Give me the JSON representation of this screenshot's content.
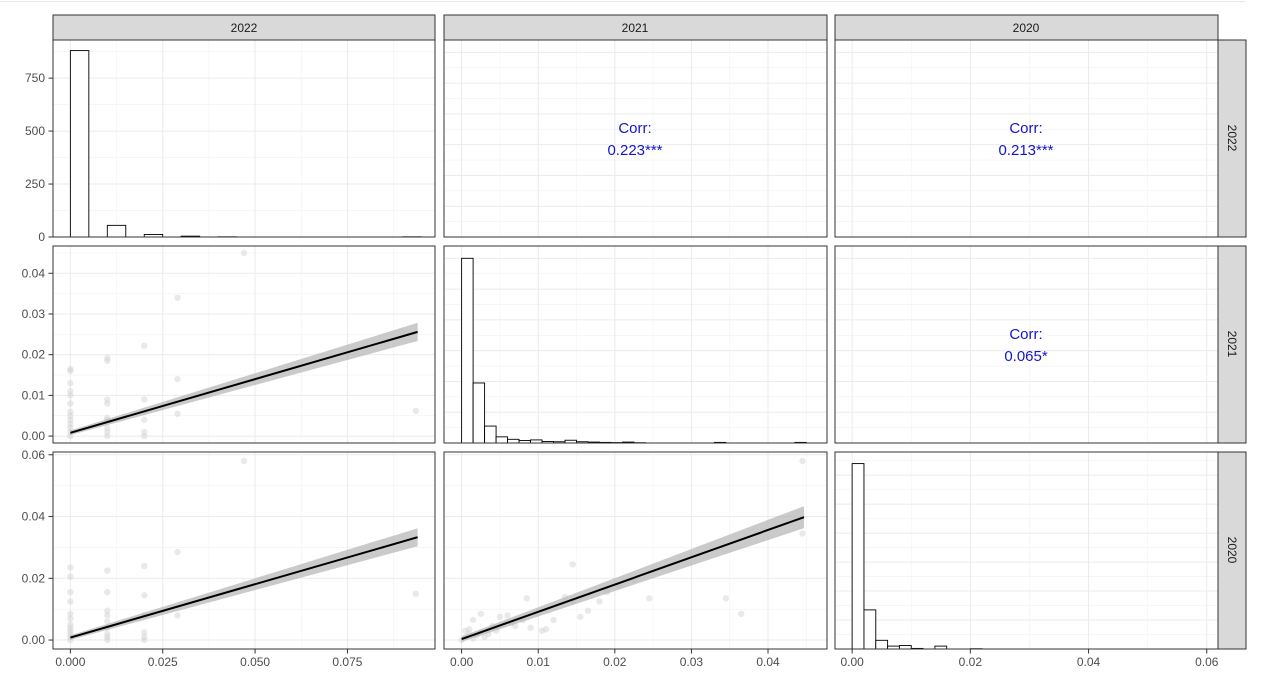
{
  "chart_data": {
    "type": "scatterplot-matrix",
    "variables": [
      "2022",
      "2021",
      "2020"
    ],
    "grid": true,
    "histograms": [
      {
        "variable": "2022",
        "bin_width": 0.005,
        "bins": [
          {
            "x0": 0.0,
            "count": 880
          },
          {
            "x0": 0.01,
            "count": 55
          },
          {
            "x0": 0.02,
            "count": 12
          },
          {
            "x0": 0.03,
            "count": 4
          },
          {
            "x0": 0.04,
            "count": 1
          },
          {
            "x0": 0.09,
            "count": 1
          }
        ],
        "x_ticks": [
          "0.000",
          "0.025",
          "0.050",
          "0.075"
        ],
        "y_ticks": [
          "0",
          "250",
          "500",
          "750"
        ],
        "ylim": [
          0,
          930
        ]
      },
      {
        "variable": "2021",
        "bin_width": 0.0015,
        "bins": [
          {
            "x0": 0.0,
            "count": 600
          },
          {
            "x0": 0.0015,
            "count": 195
          },
          {
            "x0": 0.003,
            "count": 55
          },
          {
            "x0": 0.0045,
            "count": 20
          },
          {
            "x0": 0.006,
            "count": 12
          },
          {
            "x0": 0.0075,
            "count": 8
          },
          {
            "x0": 0.009,
            "count": 10
          },
          {
            "x0": 0.0105,
            "count": 5
          },
          {
            "x0": 0.012,
            "count": 4
          },
          {
            "x0": 0.0135,
            "count": 9
          },
          {
            "x0": 0.015,
            "count": 4
          },
          {
            "x0": 0.0165,
            "count": 3
          },
          {
            "x0": 0.018,
            "count": 2
          },
          {
            "x0": 0.0195,
            "count": 1
          },
          {
            "x0": 0.0195,
            "count": 1
          },
          {
            "x0": 0.021,
            "count": 3
          },
          {
            "x0": 0.0225,
            "count": 1
          },
          {
            "x0": 0.033,
            "count": 2
          },
          {
            "x0": 0.0435,
            "count": 2
          }
        ],
        "x_ticks": [
          "0.00",
          "0.01",
          "0.02",
          "0.03",
          "0.04"
        ],
        "ylim": [
          0,
          640
        ]
      },
      {
        "variable": "2020",
        "bin_width": 0.002,
        "bins": [
          {
            "x0": 0.0,
            "count": 640
          },
          {
            "x0": 0.002,
            "count": 135
          },
          {
            "x0": 0.004,
            "count": 30
          },
          {
            "x0": 0.006,
            "count": 10
          },
          {
            "x0": 0.008,
            "count": 12
          },
          {
            "x0": 0.01,
            "count": 2
          },
          {
            "x0": 0.014,
            "count": 10
          },
          {
            "x0": 0.02,
            "count": 1
          }
        ],
        "x_ticks": [
          "0.00",
          "0.02",
          "0.04",
          "0.06"
        ],
        "ylim": [
          0,
          680
        ]
      }
    ],
    "correlations": [
      {
        "row": "2022",
        "col": "2021",
        "label": "Corr:",
        "value": "0.223***"
      },
      {
        "row": "2022",
        "col": "2020",
        "label": "Corr:",
        "value": "0.213***"
      },
      {
        "row": "2021",
        "col": "2020",
        "label": "Corr:",
        "value": "0.065*"
      }
    ],
    "scatters": [
      {
        "x_var": "2022",
        "y_var": "2021",
        "xlim": [
          -0.0047,
          0.0987
        ],
        "ylim": [
          -0.0017,
          0.0467
        ],
        "y_ticks": [
          "0.00",
          "0.01",
          "0.02",
          "0.03",
          "0.04"
        ],
        "fit": {
          "x": [
            0.0,
            0.094
          ],
          "y": [
            0.0008,
            0.0256
          ]
        },
        "points": [
          [
            0,
            0
          ],
          [
            0,
            0.001
          ],
          [
            0,
            0.002
          ],
          [
            0,
            0.003
          ],
          [
            0,
            0.004
          ],
          [
            0,
            0.005
          ],
          [
            0,
            0.006
          ],
          [
            0,
            0.008
          ],
          [
            0,
            0.01
          ],
          [
            0,
            0.011
          ],
          [
            0,
            0.013
          ],
          [
            0,
            0.016
          ],
          [
            0,
            0.0165
          ],
          [
            0.01,
            0
          ],
          [
            0.01,
            0.001
          ],
          [
            0.01,
            0.002
          ],
          [
            0.01,
            0.004
          ],
          [
            0.01,
            0.0045
          ],
          [
            0.01,
            0.008
          ],
          [
            0.01,
            0.009
          ],
          [
            0.01,
            0.0185
          ],
          [
            0.01,
            0.0192
          ],
          [
            0.02,
            0
          ],
          [
            0.02,
            0.001
          ],
          [
            0.02,
            0.004
          ],
          [
            0.02,
            0.006
          ],
          [
            0.02,
            0.009
          ],
          [
            0.02,
            0.0222
          ],
          [
            0.029,
            0.0055
          ],
          [
            0.029,
            0.014
          ],
          [
            0.029,
            0.034
          ],
          [
            0.047,
            0.045
          ],
          [
            0.0935,
            0.0062
          ]
        ]
      },
      {
        "x_var": "2022",
        "y_var": "2020",
        "xlim": [
          -0.0047,
          0.0987
        ],
        "ylim": [
          -0.0029,
          0.0609
        ],
        "y_ticks": [
          "0.00",
          "0.02",
          "0.04",
          "0.06"
        ],
        "fit": {
          "x": [
            0.0,
            0.094
          ],
          "y": [
            0.0008,
            0.0333
          ]
        },
        "points": [
          [
            0,
            0
          ],
          [
            0,
            0.001
          ],
          [
            0,
            0.002
          ],
          [
            0,
            0.003
          ],
          [
            0,
            0.004
          ],
          [
            0,
            0.005
          ],
          [
            0,
            0.007
          ],
          [
            0,
            0.0085
          ],
          [
            0,
            0.0125
          ],
          [
            0,
            0.0155
          ],
          [
            0,
            0.0205
          ],
          [
            0,
            0.0235
          ],
          [
            0.01,
            0
          ],
          [
            0.01,
            0.001
          ],
          [
            0.01,
            0.002
          ],
          [
            0.01,
            0.004
          ],
          [
            0.01,
            0.006
          ],
          [
            0.01,
            0.008
          ],
          [
            0.01,
            0.0095
          ],
          [
            0.01,
            0.0155
          ],
          [
            0.01,
            0.0225
          ],
          [
            0.02,
            0
          ],
          [
            0.02,
            0.001
          ],
          [
            0.02,
            0.0025
          ],
          [
            0.02,
            0.008
          ],
          [
            0.02,
            0.0145
          ],
          [
            0.02,
            0.024
          ],
          [
            0.029,
            0.008
          ],
          [
            0.029,
            0.0285
          ],
          [
            0.047,
            0.058
          ],
          [
            0.0935,
            0.015
          ]
        ]
      },
      {
        "x_var": "2021",
        "y_var": "2020",
        "xlim": [
          -0.0023,
          0.0477
        ],
        "ylim": [
          -0.0029,
          0.0609
        ],
        "fit": {
          "x": [
            0.0,
            0.0447
          ],
          "y": [
            0.0003,
            0.0398
          ]
        },
        "points": [
          [
            0,
            0
          ],
          [
            0.0005,
            0.001
          ],
          [
            0.001,
            0.002
          ],
          [
            0.0015,
            0.0005
          ],
          [
            0.002,
            0.0015
          ],
          [
            0.0005,
            0.003
          ],
          [
            0.001,
            0.0035
          ],
          [
            0.0025,
            0.0025
          ],
          [
            0.003,
            0.001
          ],
          [
            0.0035,
            0.002
          ],
          [
            0.004,
            0.0045
          ],
          [
            0.0045,
            0.003
          ],
          [
            0.005,
            0.0075
          ],
          [
            0.006,
            0.008
          ],
          [
            0.0065,
            0.0055
          ],
          [
            0.007,
            0.0045
          ],
          [
            0.008,
            0.0065
          ],
          [
            0.009,
            0.004
          ],
          [
            0.0105,
            0.003
          ],
          [
            0.011,
            0.0035
          ],
          [
            0.012,
            0.0065
          ],
          [
            0.0135,
            0.014
          ],
          [
            0.0145,
            0.0125
          ],
          [
            0.0155,
            0.0075
          ],
          [
            0.0165,
            0.0095
          ],
          [
            0.018,
            0.0125
          ],
          [
            0.019,
            0.0155
          ],
          [
            0.0205,
            0.0175
          ],
          [
            0.0225,
            0.0195
          ],
          [
            0.0245,
            0.0135
          ],
          [
            0.0145,
            0.0245
          ],
          [
            0.0085,
            0.0135
          ],
          [
            0.0345,
            0.0135
          ],
          [
            0.0365,
            0.0085
          ],
          [
            0.0445,
            0.0345
          ],
          [
            0.0445,
            0.058
          ],
          [
            0.0015,
            0.0065
          ],
          [
            0.0025,
            0.0085
          ]
        ]
      }
    ]
  }
}
